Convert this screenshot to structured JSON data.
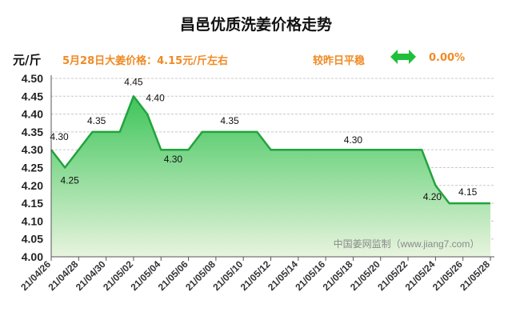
{
  "header": {
    "title": "昌邑优质洗姜价格走势",
    "unit": "元/斤",
    "price_note": "5月28日大姜价格：4.15元/斤左右",
    "change_label": "较昨日平稳",
    "change_value": "0.00%",
    "change_icon": "double-arrow-icon"
  },
  "watermark": "中国姜网监制（www.jiang7.com）",
  "colors": {
    "line": "#22a33d",
    "fill_top": "#3ec55a",
    "fill_bottom": "#e8f4de",
    "accent": "#f08a24",
    "arrow": "#1fbf3a"
  },
  "chart_data": {
    "type": "area",
    "x": [
      "21/04/26",
      "21/04/27",
      "21/04/28",
      "21/04/29",
      "21/04/30",
      "21/05/01",
      "21/05/02",
      "21/05/03",
      "21/05/04",
      "21/05/05",
      "21/05/06",
      "21/05/07",
      "21/05/08",
      "21/05/09",
      "21/05/10",
      "21/05/11",
      "21/05/12",
      "21/05/13",
      "21/05/14",
      "21/05/15",
      "21/05/16",
      "21/05/17",
      "21/05/18",
      "21/05/19",
      "21/05/20",
      "21/05/21",
      "21/05/22",
      "21/05/23",
      "21/05/24",
      "21/05/25",
      "21/05/26",
      "21/05/27",
      "21/05/28"
    ],
    "y": [
      4.3,
      4.25,
      4.3,
      4.35,
      4.35,
      4.35,
      4.45,
      4.4,
      4.3,
      4.3,
      4.3,
      4.35,
      4.35,
      4.35,
      4.35,
      4.35,
      4.3,
      4.3,
      4.3,
      4.3,
      4.3,
      4.3,
      4.3,
      4.3,
      4.3,
      4.3,
      4.3,
      4.3,
      4.2,
      4.15,
      4.15,
      4.15,
      4.15
    ],
    "x_tick_labels": [
      "21/04/26",
      "21/04/28",
      "21/04/30",
      "21/05/02",
      "21/05/04",
      "21/05/06",
      "21/05/08",
      "21/05/10",
      "21/05/12",
      "21/05/14",
      "21/05/16",
      "21/05/18",
      "21/05/20",
      "21/05/22",
      "21/05/24",
      "21/05/26",
      "21/05/28"
    ],
    "y_ticks": [
      "4.00",
      "4.05",
      "4.10",
      "4.15",
      "4.20",
      "4.25",
      "4.30",
      "4.35",
      "4.40",
      "4.45",
      "4.50"
    ],
    "ylim": [
      4.0,
      4.5
    ],
    "grid": true,
    "annotations": [
      {
        "x": "21/04/26",
        "text": "4.30"
      },
      {
        "x": "21/04/27",
        "text": "4.25"
      },
      {
        "x": "21/04/30",
        "text": "4.35"
      },
      {
        "x": "21/05/02",
        "text": "4.45"
      },
      {
        "x": "21/05/03",
        "text": "4.40"
      },
      {
        "x": "21/05/05",
        "text": "4.30"
      },
      {
        "x": "21/05/09",
        "text": "4.35"
      },
      {
        "x": "21/05/18",
        "text": "4.30"
      },
      {
        "x": "21/05/24",
        "text": "4.20"
      },
      {
        "x": "21/05/26",
        "text": "4.15"
      }
    ]
  }
}
